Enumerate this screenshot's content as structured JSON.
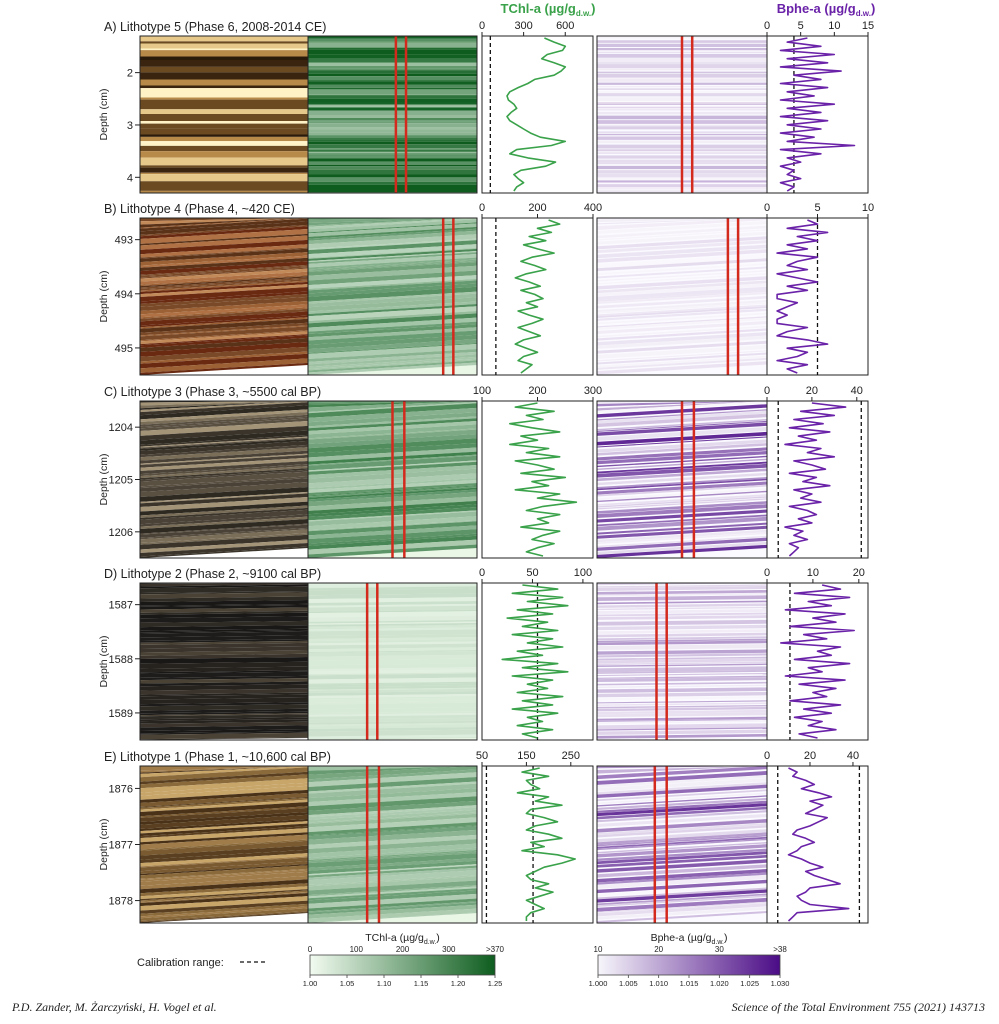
{
  "header": {
    "tchl_title": "TChl-a (µg/g",
    "tchl_sub": "d.w.",
    "bphe_title": "Bphe-a (µg/g",
    "bphe_sub": "d.w.",
    "close": ")"
  },
  "colors": {
    "tchl": "#3aa24a",
    "bphe": "#6a22a8",
    "red_line": "#d42a1e",
    "axis": "#222222"
  },
  "chart_data": {
    "type": "line",
    "panels": [
      {
        "label": "A) Lithotype 5 (Phase 6, 2008-2014 CE)",
        "ylabel": "Depth (cm)",
        "depth_ticks": [
          "2",
          "3",
          "4"
        ],
        "depth_range": [
          1.3,
          4.3
        ],
        "photo_style": "bright",
        "hsi_intensity": 0.9,
        "hsi_bphe_intensity": 0.25,
        "red_lines_green": [
          0.52,
          0.58
        ],
        "red_lines_purple": [
          0.5,
          0.56
        ],
        "tchl": {
          "xlim": [
            0,
            800
          ],
          "ticks": [
            "0",
            "300",
            "600"
          ],
          "tick_values": [
            0,
            300,
            600
          ],
          "calib": [
            60
          ],
          "values": [
            450,
            520,
            600,
            580,
            470,
            430,
            520,
            600,
            570,
            520,
            380,
            330,
            260,
            200,
            180,
            190,
            230,
            250,
            210,
            180,
            200,
            250,
            300,
            350,
            420,
            600,
            500,
            250,
            200,
            330,
            530,
            460,
            280,
            230,
            260,
            300,
            250,
            230
          ]
        },
        "bphe": {
          "xlim": [
            0,
            15
          ],
          "ticks": [
            "0",
            "5",
            "10",
            "15"
          ],
          "tick_values": [
            0,
            5,
            10,
            15
          ],
          "calib": [
            4
          ],
          "values": [
            6,
            3,
            8,
            2,
            10,
            3,
            9,
            2,
            11,
            4,
            8,
            2,
            9,
            3,
            7,
            2,
            10,
            3,
            8,
            2,
            9,
            3,
            8,
            2,
            7,
            3,
            13,
            2,
            8,
            3,
            5,
            2,
            4,
            3,
            5,
            2,
            4,
            3
          ]
        }
      },
      {
        "label": "B) Lithotype 4 (Phase 4, ~420 CE)",
        "ylabel": "Depth (cm)",
        "depth_ticks": [
          "493",
          "494",
          "495"
        ],
        "depth_range": [
          492.6,
          495.5
        ],
        "photo_style": "brown",
        "hsi_intensity": 0.6,
        "hsi_bphe_intensity": 0.1,
        "red_lines_green": [
          0.8,
          0.86
        ],
        "red_lines_purple": [
          0.77,
          0.83
        ],
        "tchl": {
          "xlim": [
            0,
            400
          ],
          "ticks": [
            "0",
            "200",
            "400"
          ],
          "tick_values": [
            0,
            200,
            400
          ],
          "calib": [
            50
          ],
          "values": [
            240,
            280,
            200,
            250,
            170,
            230,
            150,
            200,
            260,
            180,
            140,
            190,
            230,
            160,
            120,
            170,
            210,
            140,
            190,
            220,
            160,
            200,
            130,
            170,
            220,
            180,
            130,
            170,
            210,
            150,
            120,
            160,
            200,
            150,
            130,
            180,
            160,
            140
          ]
        },
        "bphe": {
          "xlim": [
            0,
            10
          ],
          "ticks": [
            "0",
            "5",
            "10"
          ],
          "tick_values": [
            0,
            5,
            10
          ],
          "calib": [
            5
          ],
          "values": [
            4,
            5,
            2,
            6,
            3,
            5,
            2,
            4,
            1,
            5,
            3,
            2,
            4,
            1,
            3,
            5,
            2,
            4,
            1,
            1,
            3,
            2,
            1,
            2,
            1,
            1,
            4,
            2,
            1,
            4,
            6,
            2,
            4,
            3,
            1,
            4,
            2,
            3
          ]
        }
      },
      {
        "label": "C) Lithotype 3 (Phase 3, ~5500 cal BP)",
        "ylabel": "Depth (cm)",
        "depth_ticks": [
          "1204",
          "1205",
          "1206"
        ],
        "depth_range": [
          1203.5,
          1206.5
        ],
        "photo_style": "grey",
        "hsi_intensity": 0.65,
        "hsi_bphe_intensity": 0.75,
        "red_lines_green": [
          0.5,
          0.57
        ],
        "red_lines_purple": [
          0.5,
          0.57
        ],
        "tchl": {
          "xlim": [
            100,
            300
          ],
          "ticks": [
            "100",
            "200",
            "300"
          ],
          "tick_values": [
            100,
            200,
            300
          ],
          "calib": [],
          "values": [
            200,
            160,
            230,
            180,
            210,
            150,
            190,
            240,
            170,
            200,
            150,
            220,
            180,
            240,
            160,
            200,
            230,
            170,
            250,
            190,
            220,
            160,
            240,
            200,
            270,
            210,
            180,
            240,
            200,
            220,
            170,
            240,
            210,
            190,
            230,
            200,
            180,
            210
          ]
        },
        "bphe": {
          "xlim": [
            0,
            45
          ],
          "ticks": [
            "0",
            "20",
            "40"
          ],
          "tick_values": [
            0,
            20,
            40
          ],
          "calib": [
            5,
            42
          ],
          "values": [
            20,
            35,
            15,
            30,
            12,
            25,
            10,
            28,
            14,
            22,
            8,
            24,
            18,
            30,
            12,
            20,
            26,
            10,
            22,
            16,
            28,
            12,
            20,
            15,
            24,
            10,
            18,
            22,
            14,
            20,
            8,
            16,
            12,
            18,
            10,
            14,
            12,
            10
          ]
        }
      },
      {
        "label": "D) Lithotype 2 (Phase 2, ~9100 cal BP)",
        "ylabel": "Depth (cm)",
        "depth_ticks": [
          "1587",
          "1588",
          "1589"
        ],
        "depth_range": [
          1586.6,
          1589.5
        ],
        "photo_style": "dark",
        "hsi_intensity": 0.15,
        "hsi_bphe_intensity": 0.35,
        "red_lines_green": [
          0.35,
          0.41
        ],
        "red_lines_purple": [
          0.35,
          0.41
        ],
        "tchl": {
          "xlim": [
            0,
            110
          ],
          "ticks": [
            "0",
            "50",
            "100"
          ],
          "tick_values": [
            0,
            50,
            100
          ],
          "calib": [
            55
          ],
          "values": [
            40,
            75,
            30,
            80,
            45,
            85,
            35,
            70,
            25,
            65,
            40,
            75,
            30,
            70,
            45,
            80,
            35,
            60,
            20,
            75,
            40,
            85,
            30,
            70,
            45,
            65,
            35,
            80,
            40,
            70,
            30,
            75,
            45,
            60,
            35,
            70,
            40,
            55
          ]
        },
        "bphe": {
          "xlim": [
            0,
            22
          ],
          "ticks": [
            "0",
            "10",
            "20"
          ],
          "tick_values": [
            0,
            10,
            20
          ],
          "calib": [
            5
          ],
          "values": [
            12,
            16,
            6,
            18,
            9,
            14,
            4,
            17,
            10,
            15,
            5,
            19,
            8,
            13,
            3,
            16,
            11,
            14,
            6,
            18,
            9,
            12,
            4,
            17,
            7,
            15,
            10,
            13,
            5,
            16,
            8,
            14,
            6,
            12,
            9,
            15,
            7,
            11
          ]
        }
      },
      {
        "label": "E) Lithotype 1 (Phase 1, ~10,600 cal BP)",
        "ylabel": "Depth (cm)",
        "depth_ticks": [
          "1876",
          "1877",
          "1878"
        ],
        "depth_range": [
          1875.6,
          1878.4
        ],
        "photo_style": "warm",
        "hsi_intensity": 0.55,
        "hsi_bphe_intensity": 0.7,
        "red_lines_green": [
          0.35,
          0.42
        ],
        "red_lines_purple": [
          0.34,
          0.41
        ],
        "tchl": {
          "xlim": [
            50,
            300
          ],
          "ticks": [
            "50",
            "150",
            "250"
          ],
          "tick_values": [
            50,
            150,
            250
          ],
          "calib": [
            60,
            165
          ],
          "values": [
            180,
            140,
            200,
            150,
            160,
            180,
            130,
            200,
            170,
            230,
            160,
            150,
            190,
            220,
            170,
            150,
            200,
            230,
            160,
            190,
            140,
            220,
            260,
            230,
            190,
            170,
            150,
            160,
            200,
            170,
            210,
            180,
            150,
            170,
            190,
            160,
            150,
            150
          ]
        },
        "bphe": {
          "xlim": [
            0,
            47
          ],
          "ticks": [
            "0",
            "20",
            "40"
          ],
          "tick_values": [
            0,
            20,
            40
          ],
          "calib": [
            5,
            43
          ],
          "values": [
            10,
            14,
            12,
            18,
            22,
            16,
            24,
            30,
            20,
            26,
            22,
            18,
            28,
            24,
            20,
            14,
            12,
            18,
            22,
            16,
            14,
            10,
            16,
            20,
            26,
            18,
            22,
            28,
            34,
            20,
            18,
            14,
            16,
            20,
            38,
            14,
            12,
            10
          ]
        }
      }
    ],
    "colorbars": [
      {
        "title": "TChl-a (µg/g",
        "title_sub": "d.w.",
        "top_ticks": [
          "0",
          "100",
          "200",
          "300",
          ">370"
        ],
        "bottom_ticks": [
          "1.00",
          "1.05",
          "1.10",
          "1.15",
          "1.20",
          "1.25"
        ],
        "color_from": "#f2fbf0",
        "color_to": "#0e5d1f"
      },
      {
        "title": "Bphe-a (µg/g",
        "title_sub": "d.w.",
        "top_ticks": [
          "10",
          "20",
          "30",
          ">38"
        ],
        "bottom_ticks": [
          "1.000",
          "1.005",
          "1.010",
          "1.015",
          "1.020",
          "1.025",
          "1.030"
        ],
        "color_from": "#f7f6fb",
        "color_to": "#4b0c86"
      }
    ],
    "legend": {
      "label": "Calibration range:"
    }
  },
  "footer": {
    "authors": "P.D. Zander, M. Żarczyński, H. Vogel et al.",
    "journal": "Science of the Total Environment 755 (2021) 143713"
  }
}
